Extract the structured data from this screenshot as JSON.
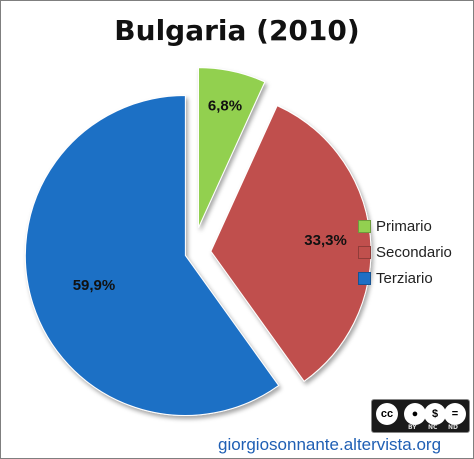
{
  "chart_data": {
    "type": "pie",
    "title": "Bulgaria (2010)",
    "categories": [
      "Primario",
      "Secondario",
      "Terziario"
    ],
    "values": [
      6.8,
      33.3,
      59.9
    ],
    "data_labels": [
      "6,8%",
      "33,3%",
      "59,9%"
    ],
    "colors": [
      "#92d050",
      "#c0504d",
      "#1f6fc5"
    ],
    "exploded": true,
    "legend_position": "right"
  },
  "license_badge": {
    "main": "cc",
    "subs": [
      "BY",
      "NC",
      "ND"
    ]
  },
  "footer": {
    "url": "giorgiosonnante.altervista.org"
  }
}
